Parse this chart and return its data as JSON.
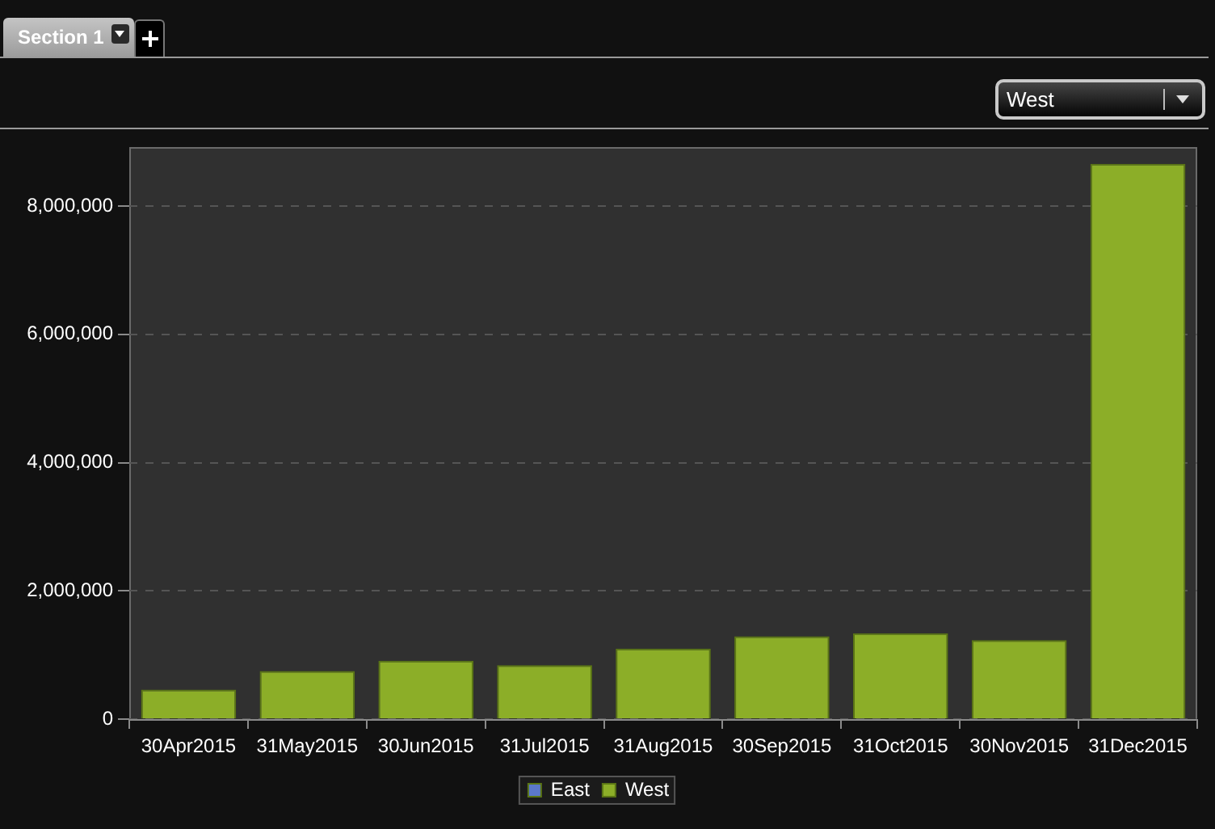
{
  "chart_data": {
    "type": "bar",
    "annotations": [
      "Section 1",
      "West"
    ],
    "categories": [
      "30Apr2015",
      "31May2015",
      "30Jun2015",
      "31Jul2015",
      "31Aug2015",
      "30Sep2015",
      "31Oct2015",
      "30Nov2015",
      "31Dec2015"
    ],
    "series": [
      {
        "name": "East",
        "color": "#5b78c9",
        "values": [
          null,
          null,
          null,
          null,
          null,
          null,
          null,
          null,
          null
        ]
      },
      {
        "name": "West",
        "color": "#8cae28",
        "values": [
          460000,
          750000,
          910000,
          840000,
          1100000,
          1290000,
          1340000,
          1230000,
          8660000
        ]
      }
    ],
    "ylim": [
      0,
      8920000
    ],
    "yticks": [
      0,
      {
        "value": 2000000,
        "label": "2,000,000"
      },
      {
        "value": 4000000,
        "label": "4,000,000"
      },
      {
        "value": 6000000,
        "label": "6,000,000"
      },
      {
        "value": 8000000,
        "label": "8,000,000"
      }
    ],
    "grid": "y",
    "legend": "bottom"
  }
}
